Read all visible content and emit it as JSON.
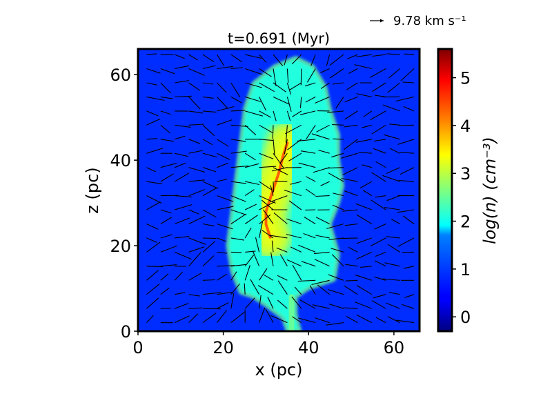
{
  "chart_data": {
    "type": "heatmap",
    "title": "t=0.691 (Myr)",
    "xlabel": "x (pc)",
    "ylabel": "z (pc)",
    "xlim": [
      0,
      66
    ],
    "ylim": [
      0,
      66
    ],
    "x_ticks": [
      0,
      20,
      40,
      60
    ],
    "y_ticks": [
      0,
      20,
      40,
      60
    ],
    "colorbar": {
      "label": "log(n) (cm⁻³)",
      "colormap": "jet",
      "range": [
        -0.3,
        5.6
      ],
      "ticks": [
        0,
        1,
        2,
        3,
        4,
        5
      ]
    },
    "quiver_key": {
      "label": "9.78 km s⁻¹",
      "value_km_s": 9.78
    },
    "background_log_n": 0.7,
    "cloud_boundary": [
      [
        38,
        0
      ],
      [
        37,
        4
      ],
      [
        37,
        8
      ],
      [
        40,
        10
      ],
      [
        46,
        12
      ],
      [
        47,
        18
      ],
      [
        45,
        25
      ],
      [
        47,
        30
      ],
      [
        48,
        34
      ],
      [
        47,
        40
      ],
      [
        47,
        46
      ],
      [
        45,
        52
      ],
      [
        44,
        57
      ],
      [
        41,
        62
      ],
      [
        37,
        64
      ],
      [
        32,
        62
      ],
      [
        27,
        58
      ],
      [
        25,
        52
      ],
      [
        24,
        44
      ],
      [
        23,
        36
      ],
      [
        22,
        28
      ],
      [
        21,
        20
      ],
      [
        22,
        14
      ],
      [
        24,
        9
      ],
      [
        27,
        8
      ],
      [
        30,
        6
      ],
      [
        34,
        3
      ],
      [
        35,
        0
      ]
    ],
    "dense_ridge": [
      [
        35,
        44
      ],
      [
        34,
        41
      ],
      [
        33,
        37
      ],
      [
        32,
        34
      ],
      [
        31,
        31
      ],
      [
        30,
        28
      ],
      [
        30,
        25
      ],
      [
        31,
        22
      ]
    ],
    "ridge_peak_log_n": 4.3,
    "cloud_mean_log_n": 2.5,
    "colors": {
      "background": "#ffffff",
      "frame": "#000000",
      "arrows": "#000000"
    }
  }
}
